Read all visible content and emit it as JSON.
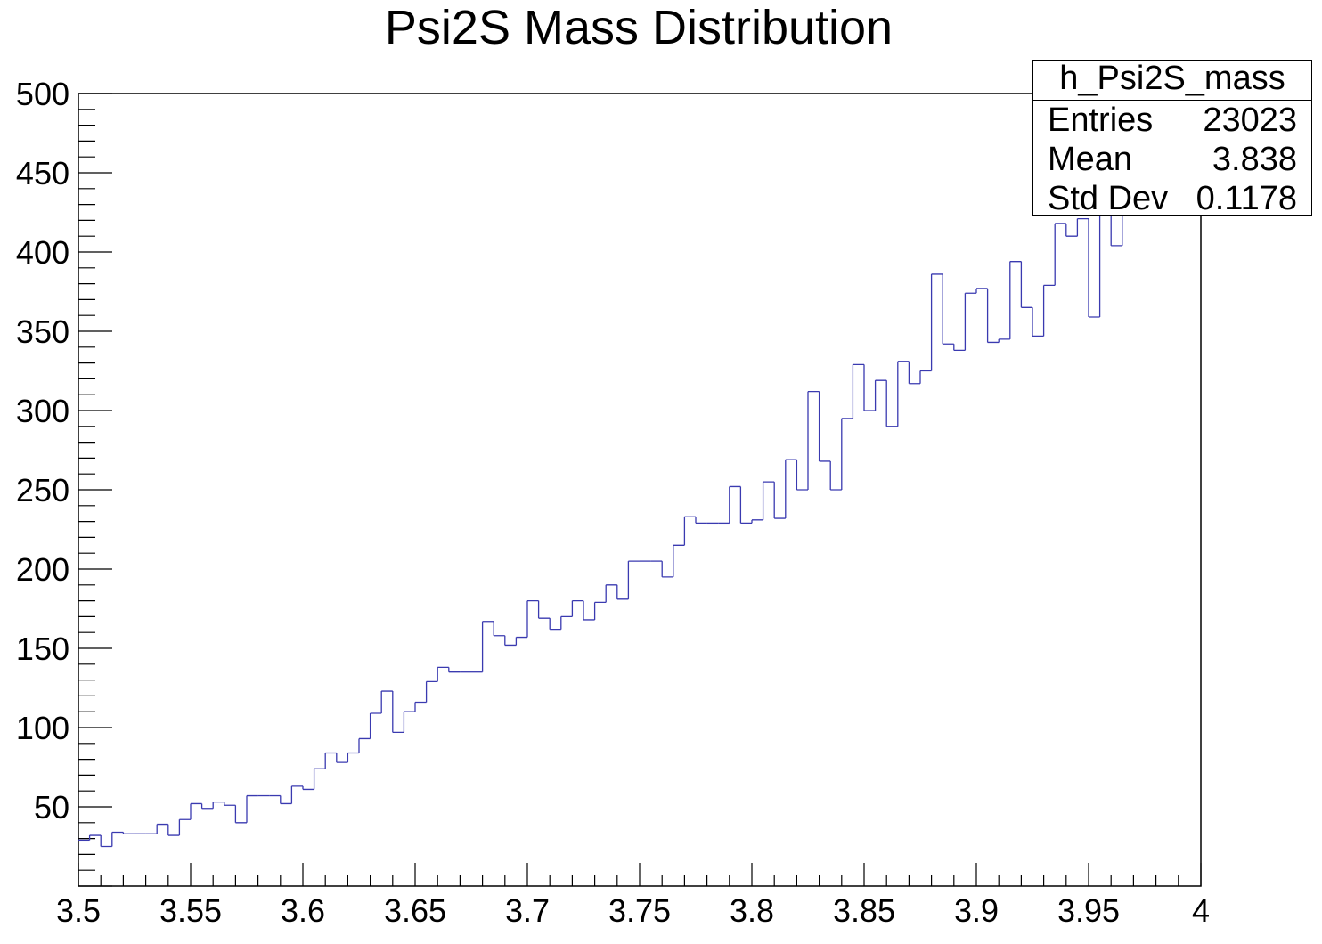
{
  "title": "Psi2S Mass Distribution",
  "stats": {
    "name": "h_Psi2S_mass",
    "rows": [
      {
        "label": "Entries",
        "value": "23023"
      },
      {
        "label": "Mean",
        "value": "3.838"
      },
      {
        "label": "Std Dev",
        "value": "0.1178"
      }
    ]
  },
  "colors": {
    "line": "#3a3ab0",
    "axis": "#000000"
  },
  "chart_data": {
    "type": "histogram",
    "title": "Psi2S Mass Distribution",
    "xlim": [
      3.5,
      4.0
    ],
    "ylim": [
      0,
      500
    ],
    "bin_width": 0.005,
    "x_ticks": [
      "3.5",
      "3.55",
      "3.6",
      "3.65",
      "3.7",
      "3.75",
      "3.8",
      "3.85",
      "3.9",
      "3.95",
      "4"
    ],
    "x_tick_values": [
      3.5,
      3.55,
      3.6,
      3.65,
      3.7,
      3.75,
      3.8,
      3.85,
      3.9,
      3.95,
      4.0
    ],
    "y_ticks": [
      "50",
      "100",
      "150",
      "200",
      "250",
      "300",
      "350",
      "400",
      "450",
      "500"
    ],
    "y_tick_values": [
      50,
      100,
      150,
      200,
      250,
      300,
      350,
      400,
      450,
      500
    ],
    "values": [
      29,
      32,
      25,
      34,
      33,
      33,
      33,
      39,
      32,
      42,
      52,
      49,
      53,
      51,
      40,
      57,
      57,
      57,
      52,
      63,
      61,
      74,
      84,
      78,
      84,
      93,
      109,
      123,
      97,
      110,
      116,
      129,
      138,
      135,
      135,
      135,
      167,
      158,
      152,
      157,
      180,
      169,
      162,
      170,
      180,
      168,
      179,
      190,
      181,
      205,
      205,
      205,
      195,
      215,
      233,
      229,
      229,
      229,
      252,
      229,
      231,
      255,
      232,
      269,
      250,
      312,
      268,
      250,
      295,
      329,
      300,
      319,
      290,
      331,
      317,
      325,
      386,
      342,
      338,
      374,
      377,
      343,
      345,
      394,
      365,
      347,
      379,
      418,
      410,
      421,
      359,
      449,
      404,
      449
    ]
  }
}
